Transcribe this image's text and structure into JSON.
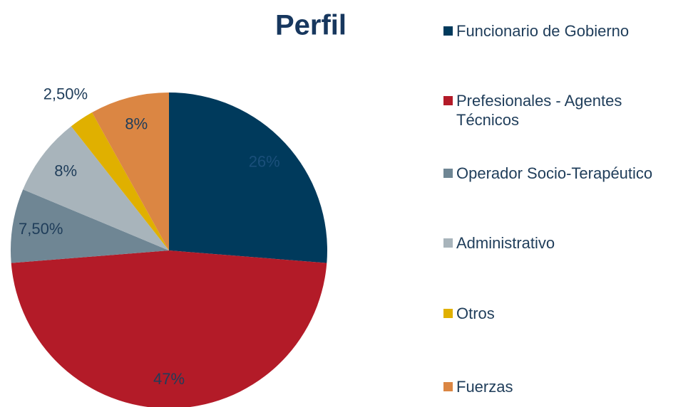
{
  "chart_data": {
    "type": "pie",
    "title": "Perfil",
    "categories": [
      "Funcionario de Gobierno",
      "Prefesionales - Agentes Técnicos",
      "Operador Socio-Terapéutico",
      "Administrativo",
      "Otros",
      "Fuerzas"
    ],
    "values": [
      26,
      47,
      7.5,
      8,
      2.5,
      8
    ],
    "value_labels": [
      "26%",
      "47%",
      "7,50%",
      "8%",
      "2,50%",
      "8%"
    ],
    "colors": [
      "#003a5c",
      "#b31b28",
      "#6f8694",
      "#a8b4bb",
      "#e0b000",
      "#db8643"
    ],
    "legend": "right"
  }
}
